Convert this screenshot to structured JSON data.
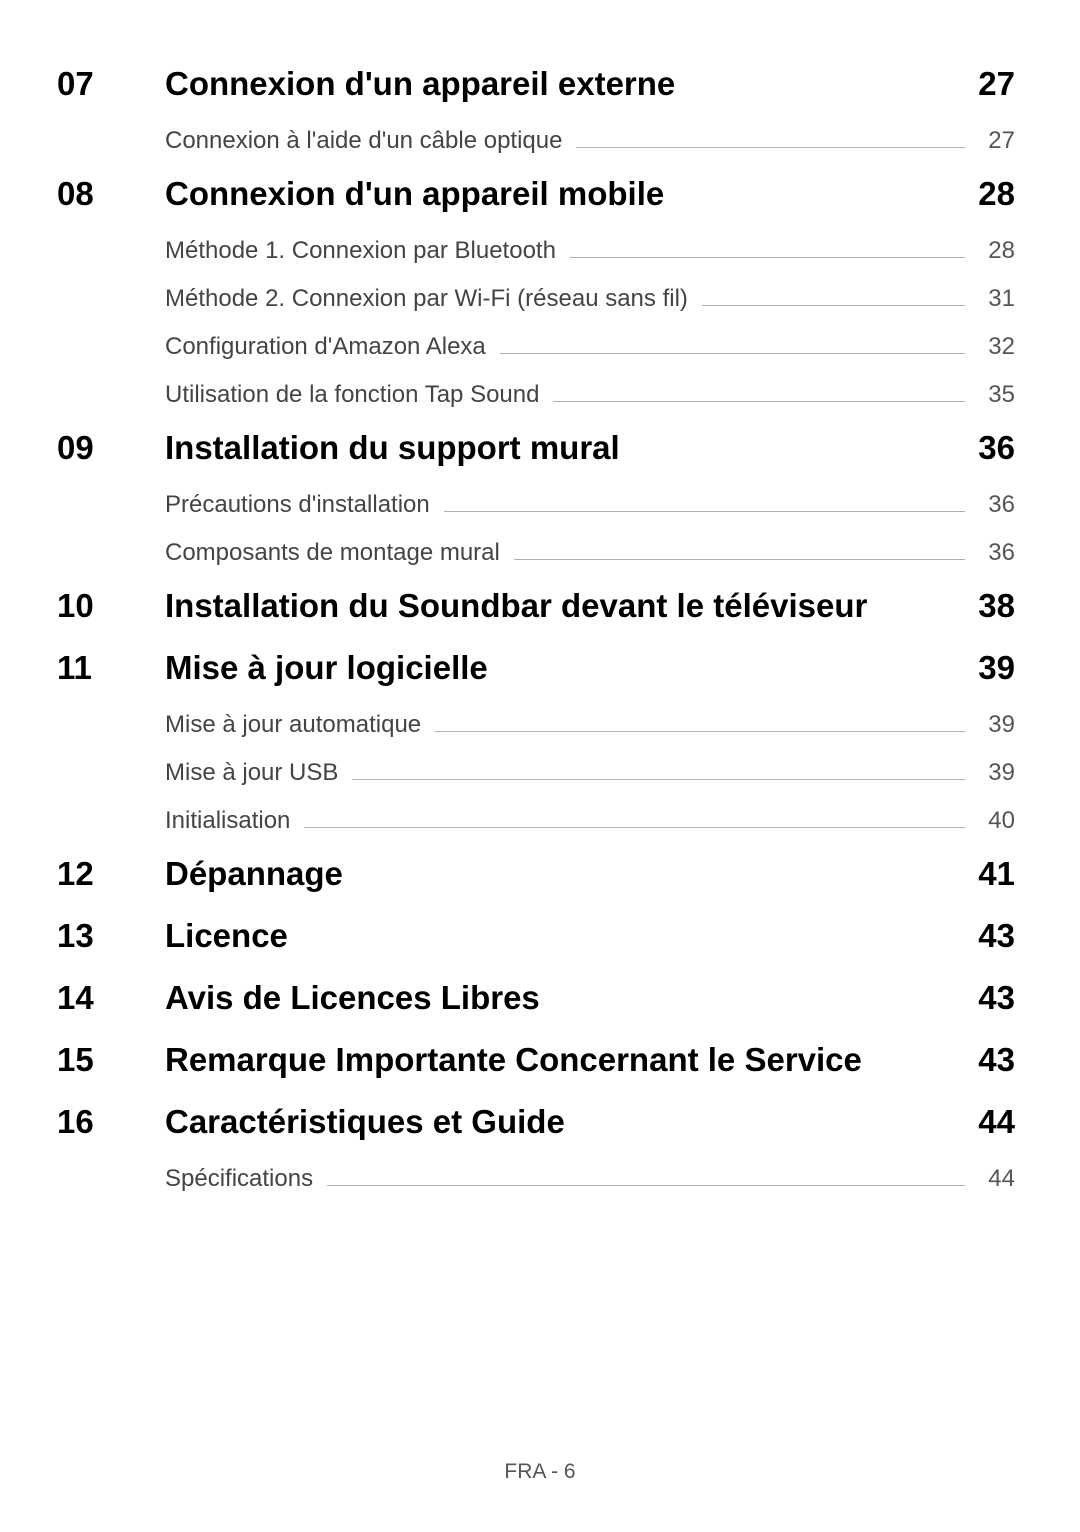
{
  "sections": [
    {
      "num": "07",
      "title": "Connexion d'un appareil externe",
      "page": "27",
      "subs": [
        {
          "title": "Connexion à l'aide d'un câble optique",
          "page": "27"
        }
      ]
    },
    {
      "num": "08",
      "title": "Connexion d'un appareil mobile",
      "page": "28",
      "subs": [
        {
          "title": "Méthode 1. Connexion par Bluetooth",
          "page": "28"
        },
        {
          "title": "Méthode 2. Connexion par Wi-Fi (réseau sans fil)",
          "page": "31"
        },
        {
          "title": "Configuration d'Amazon Alexa",
          "page": "32"
        },
        {
          "title": "Utilisation de la fonction Tap Sound",
          "page": "35"
        }
      ]
    },
    {
      "num": "09",
      "title": "Installation du support mural",
      "page": "36",
      "subs": [
        {
          "title": "Précautions d'installation",
          "page": "36"
        },
        {
          "title": "Composants de montage mural",
          "page": "36"
        }
      ]
    },
    {
      "num": "10",
      "title": "Installation du Soundbar devant le téléviseur",
      "page": "38",
      "subs": []
    },
    {
      "num": "11",
      "title": "Mise à jour logicielle",
      "page": "39",
      "subs": [
        {
          "title": "Mise à jour automatique",
          "page": "39"
        },
        {
          "title": "Mise à jour USB",
          "page": "39"
        },
        {
          "title": "Initialisation",
          "page": "40"
        }
      ]
    },
    {
      "num": "12",
      "title": "Dépannage",
      "page": "41",
      "subs": []
    },
    {
      "num": "13",
      "title": "Licence",
      "page": "43",
      "subs": []
    },
    {
      "num": "14",
      "title": "Avis de Licences Libres",
      "page": "43",
      "subs": []
    },
    {
      "num": "15",
      "title": "Remarque Importante Concernant le Service",
      "page": "43",
      "subs": []
    },
    {
      "num": "16",
      "title": "Caractéristiques et Guide",
      "page": "44",
      "subs": [
        {
          "title": "Spécifications",
          "page": "44"
        }
      ]
    }
  ],
  "footer": "FRA - 6",
  "style": {
    "background_color": "#ffffff",
    "heading_color": "#000000",
    "sub_text_color": "#444444",
    "page_num_color": "#555555",
    "leader_line_color": "#b0b0b0",
    "heading_fontsize_pt": 25,
    "sub_fontsize_pt": 18,
    "footer_fontsize_pt": 16,
    "heading_weight": "700",
    "sub_weight": "400"
  }
}
